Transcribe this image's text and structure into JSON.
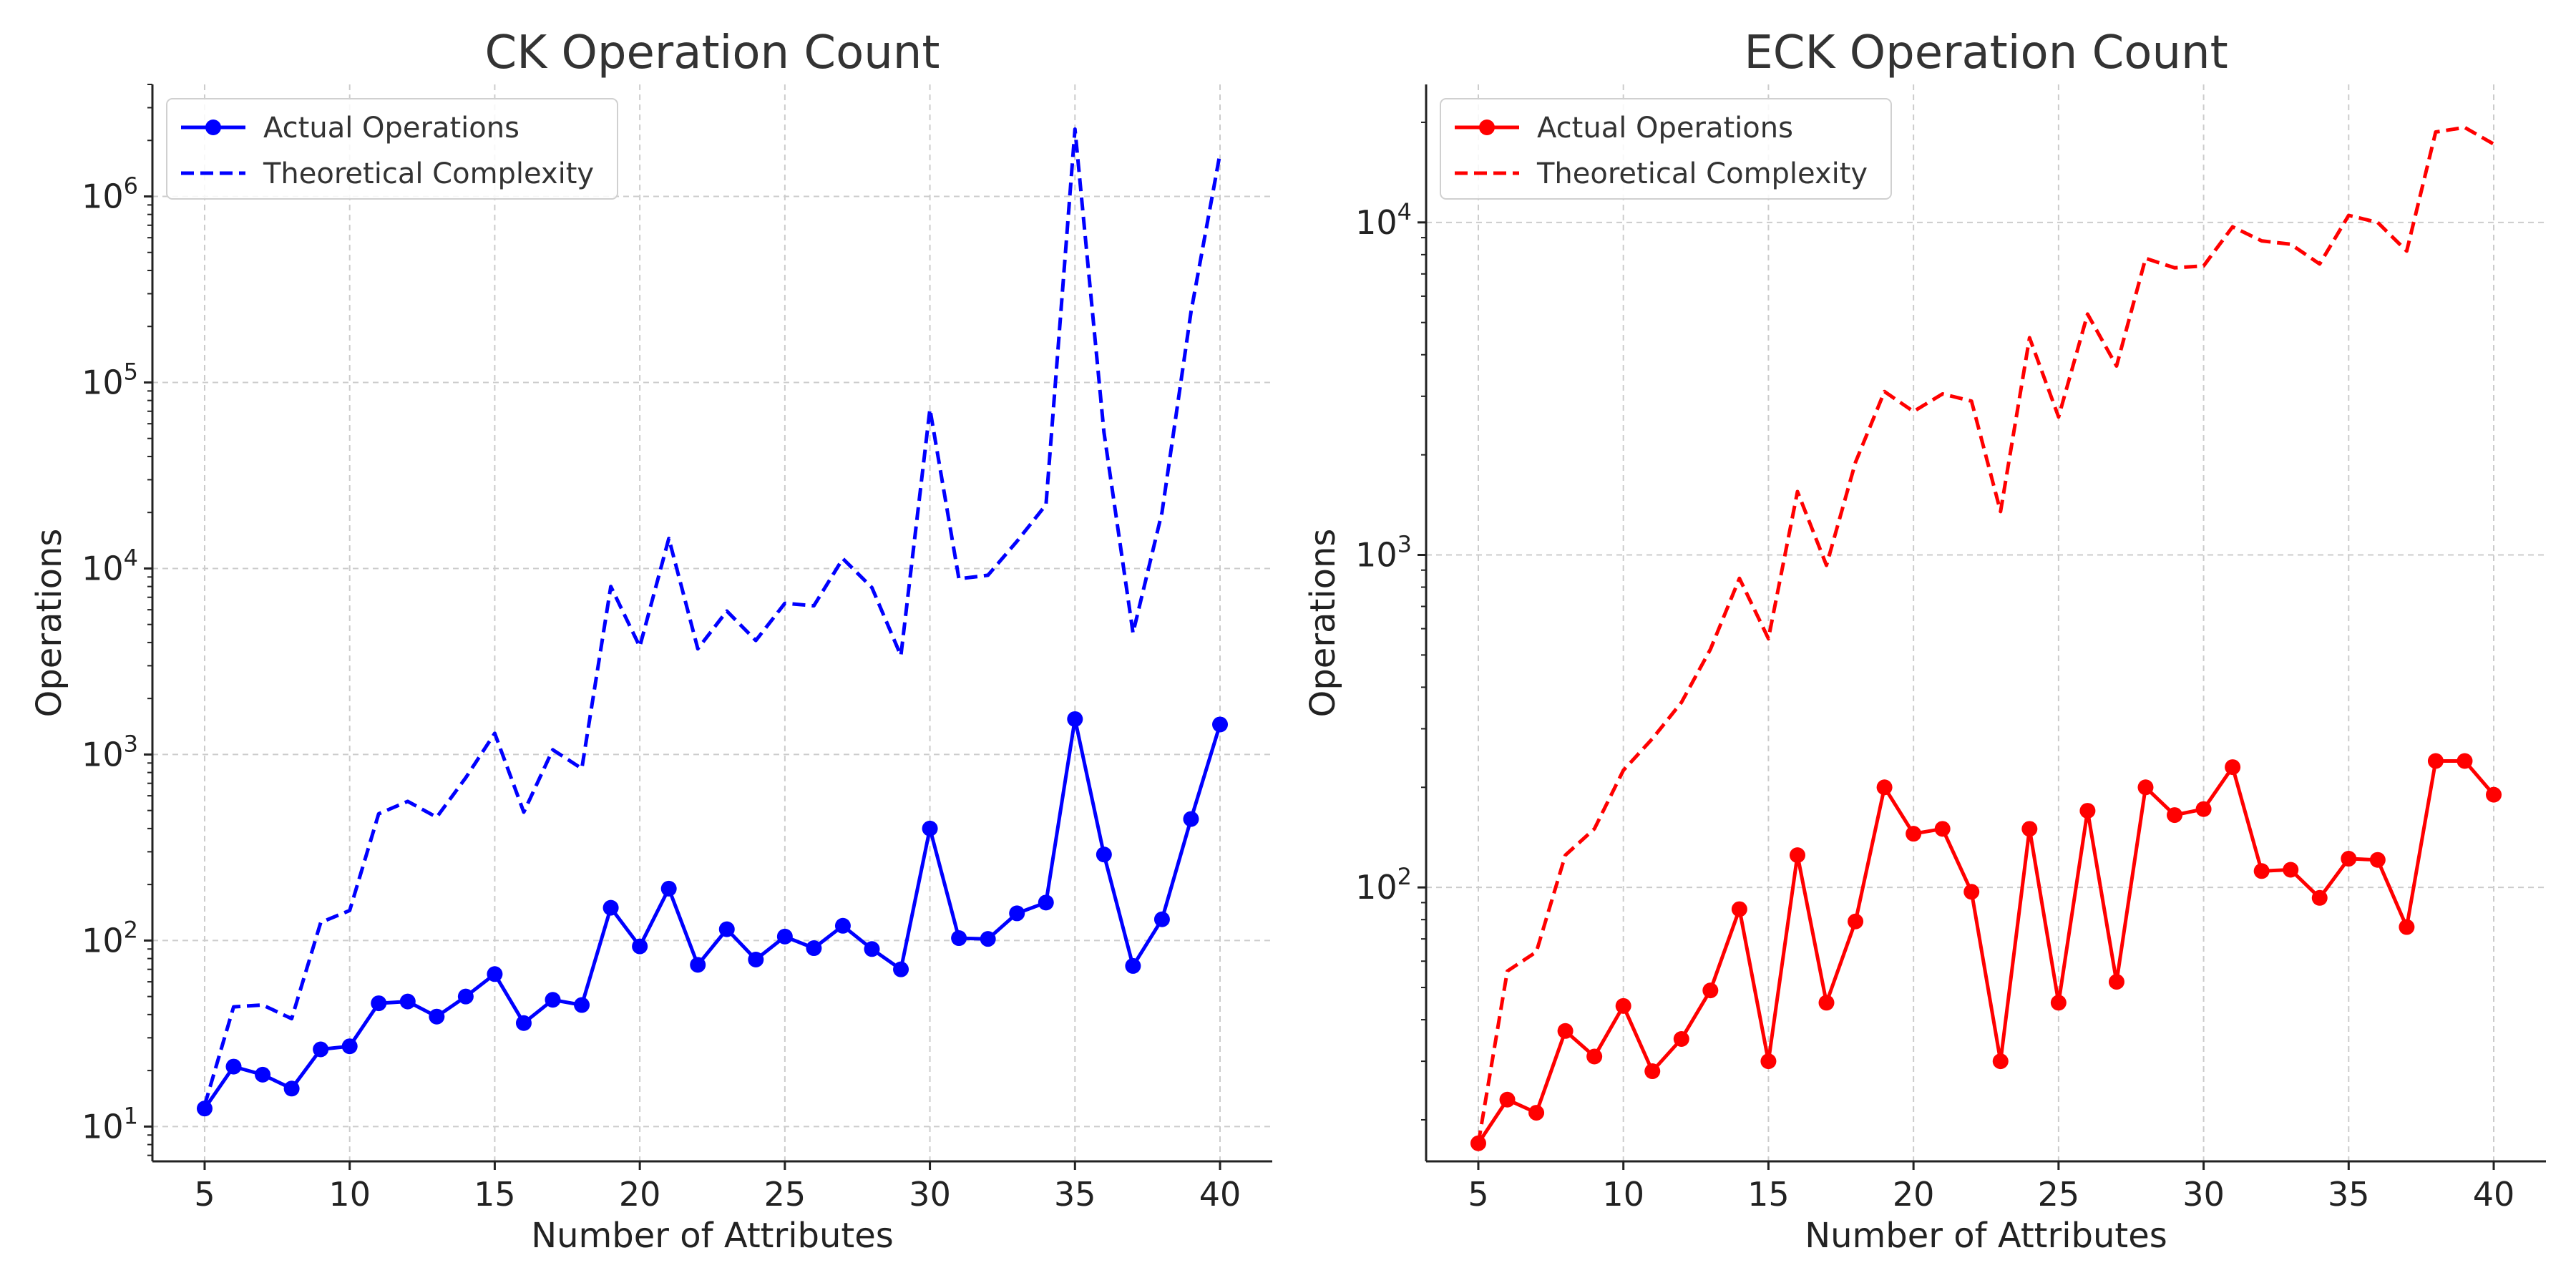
{
  "chart_data": [
    {
      "type": "line",
      "title": "CK Operation Count",
      "xlabel": "Number of Attributes",
      "ylabel": "Operations",
      "yscale": "log",
      "xlim": [
        3.2,
        41.8
      ],
      "ylim": [
        6.5,
        4000000
      ],
      "xticks": [
        5,
        10,
        15,
        20,
        25,
        30,
        35,
        40
      ],
      "ytick_exponents": [
        1,
        2,
        3,
        4,
        5,
        6
      ],
      "grid": true,
      "legend_position": "top-left",
      "color": "#0000ff",
      "x": [
        5,
        6,
        7,
        8,
        9,
        10,
        11,
        12,
        13,
        14,
        15,
        16,
        17,
        18,
        19,
        20,
        21,
        22,
        23,
        24,
        25,
        26,
        27,
        28,
        29,
        30,
        31,
        32,
        33,
        34,
        35,
        36,
        37,
        38,
        39,
        40
      ],
      "series": [
        {
          "name": "Actual Operations",
          "style": "solid-markers",
          "values": [
            12.5,
            21,
            19,
            16,
            26,
            27,
            46,
            47,
            39,
            50,
            66,
            36,
            48,
            45,
            150,
            93,
            190,
            74,
            115,
            79,
            105,
            91,
            120,
            90,
            70,
            400,
            103,
            102,
            140,
            160,
            1550,
            290,
            73,
            130,
            450,
            1450
          ]
        },
        {
          "name": "Theoretical Complexity",
          "style": "dashed",
          "values": [
            13,
            44,
            45,
            38,
            125,
            145,
            480,
            560,
            460,
            750,
            1300,
            490,
            1060,
            840,
            8000,
            3800,
            14500,
            3700,
            5900,
            4100,
            6500,
            6300,
            11300,
            7900,
            3400,
            72000,
            8800,
            9200,
            14000,
            22000,
            2300000,
            54000,
            4500,
            20000,
            240000,
            1700000
          ]
        }
      ]
    },
    {
      "type": "line",
      "title": "ECK Operation Count",
      "xlabel": "Number of Attributes",
      "ylabel": "Operations",
      "yscale": "log",
      "xlim": [
        3.2,
        41.8
      ],
      "ylim": [
        15,
        26000
      ],
      "xticks": [
        5,
        10,
        15,
        20,
        25,
        30,
        35,
        40
      ],
      "ytick_exponents": [
        2,
        3,
        4
      ],
      "grid": true,
      "legend_position": "top-left",
      "color": "#ff0000",
      "x": [
        5,
        6,
        7,
        8,
        9,
        10,
        11,
        12,
        13,
        14,
        15,
        16,
        17,
        18,
        19,
        20,
        21,
        22,
        23,
        24,
        25,
        26,
        27,
        28,
        29,
        30,
        31,
        32,
        33,
        34,
        35,
        36,
        37,
        38,
        39,
        40
      ],
      "series": [
        {
          "name": "Actual Operations",
          "style": "solid-markers",
          "values": [
            17,
            23,
            21,
            37,
            31,
            44,
            28,
            35,
            49,
            86,
            30,
            125,
            45,
            79,
            200,
            145,
            150,
            97,
            30,
            150,
            45,
            170,
            52,
            200,
            165,
            172,
            230,
            112,
            113,
            93,
            122,
            121,
            76,
            240,
            240,
            190
          ]
        },
        {
          "name": "Theoretical Complexity",
          "style": "dashed",
          "values": [
            17,
            56,
            64,
            125,
            150,
            225,
            280,
            360,
            520,
            850,
            560,
            1550,
            930,
            1900,
            3100,
            2700,
            3050,
            2900,
            1350,
            4500,
            2600,
            5300,
            3700,
            7800,
            7300,
            7400,
            9700,
            8800,
            8600,
            7500,
            10500,
            10000,
            8200,
            18700,
            19300,
            17200
          ]
        }
      ]
    }
  ]
}
